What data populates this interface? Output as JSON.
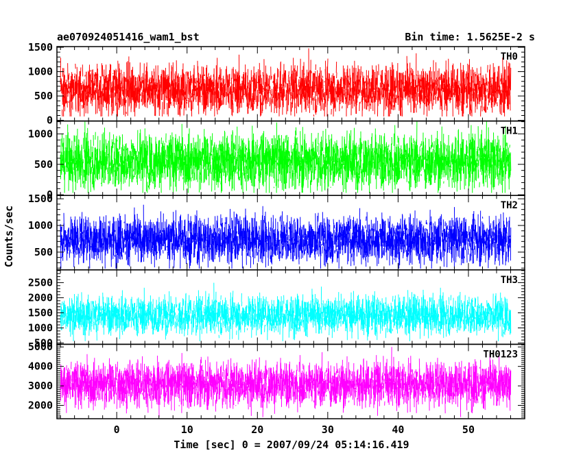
{
  "header": {
    "title": "ae070924051416_wam1_bst",
    "bin_time": "Bin time: 1.5625E-2 s"
  },
  "chart_data": {
    "type": "line",
    "xlabel": "Time [sec] 0 = 2007/09/24 05:14:16.419",
    "ylabel": "Counts/sec",
    "xlim": [
      -8.5,
      58
    ],
    "x_ticks": [
      0,
      10,
      20,
      30,
      40,
      50
    ],
    "x_range_data": [
      -8,
      56
    ],
    "panels": [
      {
        "name": "TH0",
        "color": "#ff0000",
        "ylim": [
          0,
          1500
        ],
        "y_ticks": [
          0,
          500,
          1000,
          1500
        ],
        "mean": 640,
        "spread": 330,
        "min": 80,
        "max": 1500
      },
      {
        "name": "TH1",
        "color": "#00ff00",
        "ylim": [
          0,
          1200
        ],
        "y_ticks": [
          0,
          500,
          1000
        ],
        "mean": 560,
        "spread": 300,
        "min": 30,
        "max": 1200
      },
      {
        "name": "TH2",
        "color": "#0000ff",
        "ylim": [
          180,
          1550
        ],
        "y_ticks": [
          500,
          1000,
          1500
        ],
        "mean": 740,
        "spread": 290,
        "min": 190,
        "max": 1530
      },
      {
        "name": "TH3",
        "color": "#00ffff",
        "ylim": [
          480,
          2900
        ],
        "y_ticks": [
          500,
          1000,
          1500,
          2000,
          2500
        ],
        "mean": 1430,
        "spread": 420,
        "min": 560,
        "max": 2750
      },
      {
        "name": "TH0123",
        "color": "#ff00ff",
        "ylim": [
          1350,
          5100
        ],
        "y_ticks": [
          2000,
          3000,
          4000,
          5000
        ],
        "mean": 3100,
        "spread": 760,
        "min": 1400,
        "max": 5000
      }
    ]
  }
}
